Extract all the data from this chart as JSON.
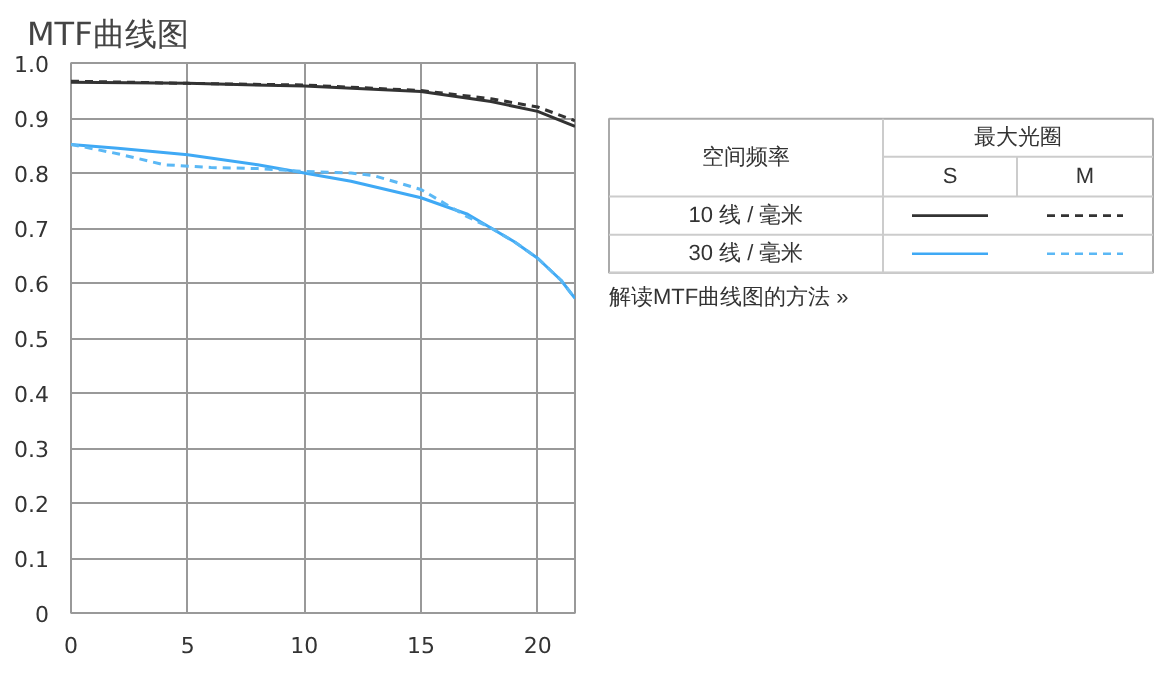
{
  "chart_data": {
    "type": "line",
    "title": "MTF曲线图",
    "xlim": [
      0,
      21.6
    ],
    "xticks": [
      0,
      5,
      10,
      15,
      20
    ],
    "ylim": [
      0,
      1.0
    ],
    "yticks": [
      {
        "value": 0,
        "label": "0"
      },
      0.1,
      0.2,
      0.3,
      0.4,
      0.5,
      0.6,
      0.7,
      0.8,
      0.9,
      {
        "value": 1.0,
        "label": "1.0"
      }
    ],
    "grid": true,
    "annotations": [
      "空间频率",
      "最大光圈",
      "S",
      "M",
      "10 线 / 毫米",
      "30 线 / 毫米",
      "解读MTF曲线图的方法 »"
    ],
    "series": [
      {
        "color": "#333333",
        "line_style": "solid",
        "x": [
          0,
          5,
          10,
          15,
          18,
          20,
          21.6
        ],
        "values": [
          0.965,
          0.963,
          0.958,
          0.948,
          0.93,
          0.912,
          0.885
        ]
      },
      {
        "color": "#333333",
        "line_style": "dashed",
        "x": [
          0,
          5,
          10,
          15,
          18,
          20,
          21.6
        ],
        "values": [
          0.967,
          0.963,
          0.96,
          0.95,
          0.935,
          0.92,
          0.895
        ]
      },
      {
        "color": "#3fa9f5",
        "line_style": "solid",
        "x": [
          0,
          2,
          5,
          8,
          10,
          12,
          15,
          17,
          18,
          19,
          20,
          21,
          21.6
        ],
        "values": [
          0.852,
          0.845,
          0.833,
          0.815,
          0.8,
          0.785,
          0.755,
          0.725,
          0.7,
          0.675,
          0.645,
          0.605,
          0.572
        ]
      },
      {
        "color": "#5bb8f5",
        "line_style": "dashed",
        "x": [
          0,
          2,
          4,
          6,
          8,
          10,
          12,
          13,
          15,
          16,
          17,
          18,
          19,
          20,
          21,
          21.6
        ],
        "values": [
          0.852,
          0.835,
          0.815,
          0.81,
          0.808,
          0.803,
          0.8,
          0.795,
          0.77,
          0.745,
          0.72,
          0.7,
          0.675,
          0.645,
          0.605,
          0.572
        ]
      }
    ]
  }
}
